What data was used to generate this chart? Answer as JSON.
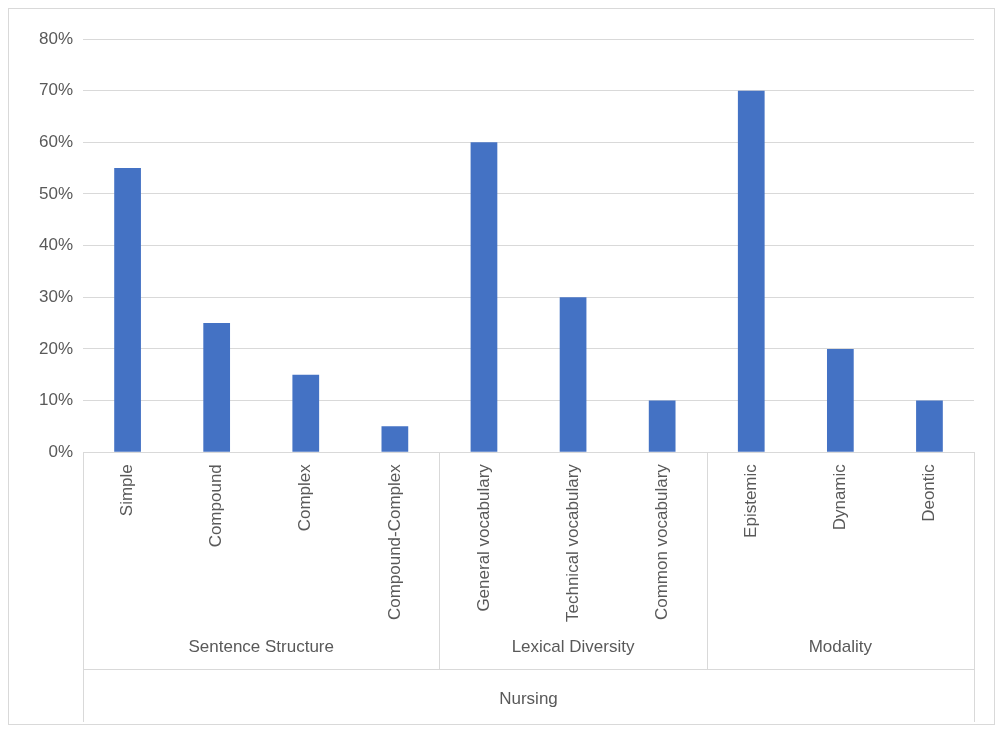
{
  "chart_data": {
    "type": "bar",
    "xlabel": "Nursing",
    "categories": [
      "Simple",
      "Compound",
      "Complex",
      "Compound-Complex",
      "General vocabulary",
      "Technical vocabulary",
      "Common vocabulary",
      "Epistemic",
      "Dynamic",
      "Deontic"
    ],
    "values": [
      55,
      25,
      15,
      5,
      60,
      30,
      10,
      70,
      20,
      10
    ],
    "color": "#4472c4",
    "ylim": [
      0,
      80
    ],
    "yticks": [
      {
        "value": 0,
        "label": "0%"
      },
      {
        "value": 10,
        "label": "10%"
      },
      {
        "value": 20,
        "label": "20%"
      },
      {
        "value": 30,
        "label": "30%"
      },
      {
        "value": 40,
        "label": "40%"
      },
      {
        "value": 50,
        "label": "50%"
      },
      {
        "value": 60,
        "label": "60%"
      },
      {
        "value": 70,
        "label": "70%"
      },
      {
        "value": 80,
        "label": "80%"
      }
    ],
    "grid": "y",
    "legend": false,
    "annotations": [
      "Sentence Structure",
      "Lexical Diversity",
      "Modality"
    ]
  }
}
